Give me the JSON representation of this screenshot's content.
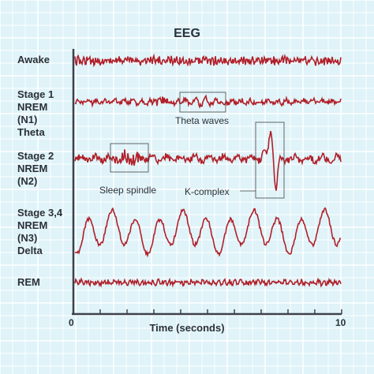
{
  "title": "EEG",
  "stages": [
    {
      "label": "Awake"
    },
    {
      "label": "Stage 1\nNREM\n(N1)\nTheta"
    },
    {
      "label": "Stage 2\nNREM\n(N2)"
    },
    {
      "label": "Stage 3,4\nNREM\n(N3)\nDelta"
    },
    {
      "label": "REM"
    }
  ],
  "annotations": {
    "theta": "Theta waves",
    "spindle": "Sleep spindle",
    "kcomplex": "K-complex"
  },
  "axis": {
    "xlabel": "Time (seconds)",
    "xmin": "0",
    "xmax": "10",
    "range": [
      0,
      10
    ],
    "ticks": 10
  },
  "colors": {
    "background": "#dff3f8",
    "grid": "#ffffff",
    "trace": "#b0202a",
    "axis": "#3c434c",
    "text": "#2a3038"
  }
}
